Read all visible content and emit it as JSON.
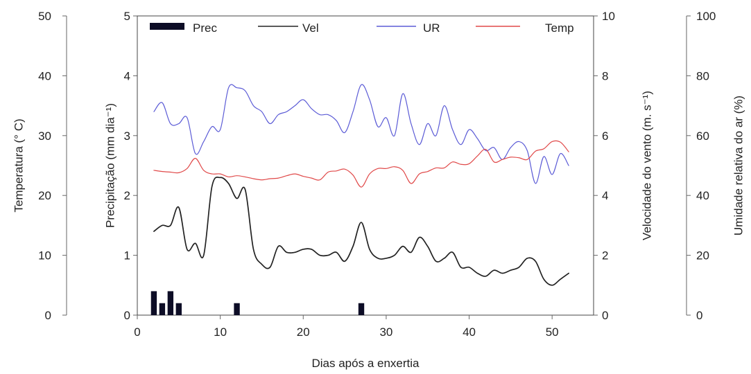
{
  "chart_data": {
    "type": "line",
    "xlabel": "Dias após a enxertia",
    "xlim": [
      0,
      55
    ],
    "x_ticks": [
      "0",
      "10",
      "20",
      "30",
      "40",
      "50"
    ],
    "axes": {
      "temperature": {
        "label": "Temperatura (° C)",
        "ylim": [
          0,
          50
        ],
        "ticks": [
          "0",
          "10",
          "20",
          "30",
          "40",
          "50"
        ]
      },
      "precipitation": {
        "label": "Precipitação (mm dia⁻¹)",
        "ylim": [
          0,
          5
        ],
        "ticks": [
          "0",
          "1",
          "2",
          "3",
          "4",
          "5"
        ]
      },
      "wind": {
        "label": "Velocidade do vento (m. s⁻¹)",
        "ylim": [
          0,
          10
        ],
        "ticks": [
          "0",
          "2",
          "4",
          "6",
          "8",
          "10"
        ]
      },
      "humidity": {
        "label": "Umidade relativa do ar (%)",
        "ylim": [
          0,
          100
        ],
        "ticks": [
          "0",
          "20",
          "40",
          "60",
          "80",
          "100"
        ]
      }
    },
    "legend": {
      "placement": "top",
      "items": [
        {
          "name": "Prec",
          "kind": "bar",
          "color": "#0d0d26"
        },
        {
          "name": "Vel",
          "kind": "line",
          "color": "#222222"
        },
        {
          "name": "UR",
          "kind": "line",
          "color": "#5b5bd6"
        },
        {
          "name": "Temp",
          "kind": "line",
          "color": "#e04848"
        }
      ]
    },
    "bars": {
      "name": "Prec",
      "axis": "precipitation",
      "color": "#0d0d26",
      "x": [
        2,
        3,
        4,
        5,
        12,
        27
      ],
      "values": [
        0.4,
        0.2,
        0.4,
        0.2,
        0.2,
        0.2
      ]
    },
    "series": [
      {
        "name": "Vel",
        "axis": "wind",
        "color": "#222222",
        "x": [
          2,
          3,
          4,
          5,
          6,
          7,
          8,
          9,
          10,
          11,
          12,
          13,
          14,
          15,
          16,
          17,
          18,
          19,
          20,
          21,
          22,
          23,
          24,
          25,
          26,
          27,
          28,
          29,
          30,
          31,
          32,
          33,
          34,
          35,
          36,
          37,
          38,
          39,
          40,
          41,
          42,
          43,
          44,
          45,
          46,
          47,
          48,
          49,
          50,
          51,
          52
        ],
        "values": [
          2.8,
          3.0,
          3.0,
          3.6,
          2.2,
          2.4,
          2.0,
          4.3,
          4.6,
          4.4,
          3.9,
          4.2,
          2.2,
          1.7,
          1.6,
          2.3,
          2.1,
          2.1,
          2.2,
          2.2,
          2.0,
          2.0,
          2.1,
          1.8,
          2.3,
          3.1,
          2.2,
          1.9,
          1.9,
          2.0,
          2.3,
          2.1,
          2.6,
          2.3,
          1.8,
          1.9,
          2.1,
          1.6,
          1.6,
          1.4,
          1.3,
          1.5,
          1.4,
          1.5,
          1.6,
          1.9,
          1.8,
          1.2,
          1.0,
          1.2,
          1.4
        ]
      },
      {
        "name": "UR",
        "axis": "humidity",
        "color": "#5b5bd6",
        "x": [
          2,
          3,
          4,
          5,
          6,
          7,
          8,
          9,
          10,
          11,
          12,
          13,
          14,
          15,
          16,
          17,
          18,
          19,
          20,
          21,
          22,
          23,
          24,
          25,
          26,
          27,
          28,
          29,
          30,
          31,
          32,
          33,
          34,
          35,
          36,
          37,
          38,
          39,
          40,
          41,
          42,
          43,
          44,
          45,
          46,
          47,
          48,
          49,
          50,
          51,
          52
        ],
        "values": [
          68,
          71,
          64,
          64,
          66,
          54,
          58,
          63,
          62,
          76,
          76,
          75,
          70,
          68,
          64,
          67,
          68,
          70,
          72,
          69,
          67,
          67,
          65,
          61,
          68,
          77,
          72,
          63,
          66,
          60,
          74,
          64,
          57,
          64,
          60,
          70,
          62,
          57,
          62,
          59,
          55,
          56,
          52,
          56,
          58,
          55,
          44,
          53,
          47,
          54,
          50
        ]
      },
      {
        "name": "Temp",
        "axis": "temperature",
        "color": "#e04848",
        "x": [
          2,
          3,
          4,
          5,
          6,
          7,
          8,
          9,
          10,
          11,
          12,
          13,
          14,
          15,
          16,
          17,
          18,
          19,
          20,
          21,
          22,
          23,
          24,
          25,
          26,
          27,
          28,
          29,
          30,
          31,
          32,
          33,
          34,
          35,
          36,
          37,
          38,
          39,
          40,
          41,
          42,
          43,
          44,
          45,
          46,
          47,
          48,
          49,
          50,
          51,
          52
        ],
        "values": [
          24.2,
          24.0,
          23.9,
          23.8,
          24.5,
          26.2,
          24.2,
          23.6,
          23.6,
          23.1,
          23.3,
          23.1,
          22.8,
          22.6,
          22.8,
          22.9,
          23.3,
          23.6,
          23.2,
          22.9,
          22.6,
          23.9,
          24.1,
          24.4,
          23.4,
          21.4,
          23.6,
          24.5,
          24.5,
          24.8,
          24.2,
          22.0,
          23.6,
          24.0,
          24.6,
          24.6,
          25.6,
          25.2,
          25.3,
          26.6,
          27.7,
          25.6,
          26.0,
          26.4,
          26.3,
          26.0,
          27.4,
          27.8,
          29.0,
          28.9,
          27.3
        ]
      }
    ]
  }
}
